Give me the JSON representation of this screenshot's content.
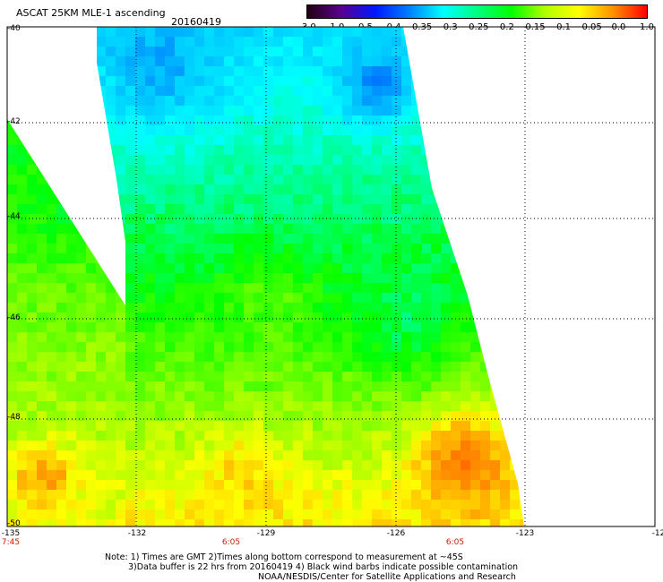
{
  "header": {
    "title": "ASCAT 25KM MLE-1 ascending",
    "date": "20160419"
  },
  "colorbar": {
    "colors": [
      "#200010",
      "#5a0090",
      "#0018ff",
      "#0080ff",
      "#00ffff",
      "#00ff80",
      "#00ff00",
      "#b0ff00",
      "#ffff00",
      "#ff9000",
      "#ff0000"
    ],
    "ticks": [
      "-3.0",
      "-1.0",
      "-0.5",
      "-0.4",
      "-0.35",
      "-0.3",
      "-0.25",
      "-0.2",
      "-0.15",
      "-0.1",
      "-0.05",
      "0.0",
      "1.0"
    ]
  },
  "axes": {
    "lat_labels": [
      "-40",
      "-42",
      "-44",
      "-46",
      "-48",
      "-50"
    ],
    "lon_labels": [
      "-135",
      "-132",
      "-129",
      "-126",
      "-123",
      "-12"
    ],
    "time_labels": [
      "7:45",
      "6:05",
      "6:05"
    ]
  },
  "notes": [
    "Note: 1) Times are GMT 2)Times along bottom correspond to measurement at ~45S",
    "3)Data buffer is 22 hrs from 20160419 4) Black wind barbs indicate possible contamination",
    "NOAA/NESDIS/Center for Satellite Applications and Research"
  ],
  "map_data": {
    "field": "MLE-1",
    "lat_range": [
      -50,
      -40
    ],
    "lon_range": [
      -135,
      -123
    ],
    "swaths": [
      {
        "name": "west-swath",
        "region": "lower-left, lon -135 to -132.2",
        "values_range": [
          -0.25,
          0.0
        ]
      },
      {
        "name": "central-swath",
        "region": "lon -132.6 to -124",
        "values_range": [
          -0.4,
          0.05
        ]
      }
    ],
    "features": [
      {
        "desc": "cyan/blue minimum near top",
        "lon": -131.5,
        "lat": -41,
        "value": -0.3
      },
      {
        "desc": "blue minimum near top-right edge",
        "lon": -125.7,
        "lat": -41.3,
        "value": -0.4
      },
      {
        "desc": "orange maximum lower-right",
        "lon": -124.6,
        "lat": -49,
        "value": 0.0
      },
      {
        "desc": "orange maximum lower-left",
        "lon": -134.4,
        "lat": -49.3,
        "value": -0.05
      }
    ]
  }
}
